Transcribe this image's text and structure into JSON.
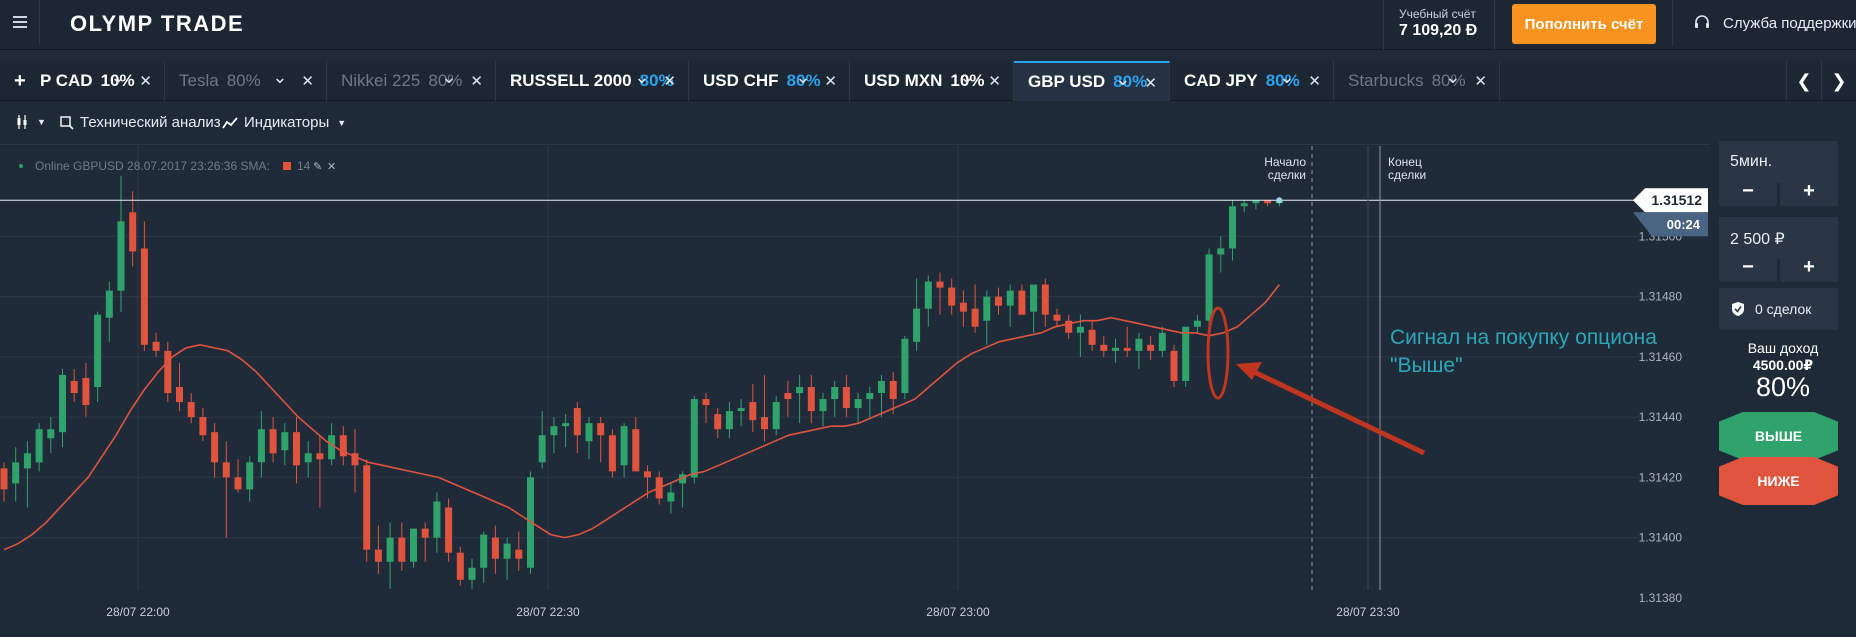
{
  "header": {
    "logo_text": "OLYMP TRADE",
    "account_label": "Учебный счёт",
    "account_balance": "7 109,20 Ð",
    "deposit_button": "Пополнить счёт",
    "support_label": "Служба поддержки"
  },
  "tabs": [
    {
      "name": "P CAD",
      "percent": "10%",
      "percent_color": "#ffffff",
      "dim": false,
      "active": false
    },
    {
      "name": "Tesla",
      "percent": "80%",
      "percent_color": "#6e7988",
      "dim": true,
      "active": false
    },
    {
      "name": "Nikkei 225",
      "percent": "80%",
      "percent_color": "#6e7988",
      "dim": true,
      "active": false
    },
    {
      "name": "RUSSELL 2000",
      "percent": "80%",
      "percent_color": "#2aa3f0",
      "dim": false,
      "active": false
    },
    {
      "name": "USD CHF",
      "percent": "80%",
      "percent_color": "#2aa3f0",
      "dim": false,
      "active": false
    },
    {
      "name": "USD MXN",
      "percent": "10%",
      "percent_color": "#ffffff",
      "dim": false,
      "active": false
    },
    {
      "name": "GBP USD",
      "percent": "80%",
      "percent_color": "#2aa3f0",
      "dim": false,
      "active": true
    },
    {
      "name": "CAD JPY",
      "percent": "80%",
      "percent_color": "#2aa3f0",
      "dim": false,
      "active": false
    },
    {
      "name": "Starbucks",
      "percent": "80%",
      "percent_color": "#6e7988",
      "dim": true,
      "active": false
    }
  ],
  "toolbar": {
    "tech_analysis": "Технический анализ",
    "indicators": "Индикаторы"
  },
  "chart_data": {
    "type": "candlestick",
    "legend": "Online GBPUSD 28.07.2017 23:26:36 SMA:",
    "sma_period": "14",
    "current_price": "1.31512",
    "timer": "00:24",
    "y_ticks": [
      "1.31500",
      "1.31480",
      "1.31460",
      "1.31440",
      "1.31420",
      "1.31400",
      "1.31380"
    ],
    "x_ticks": [
      "28/07 22:00",
      "28/07 22:30",
      "28/07 23:00",
      "28/07 23:30"
    ],
    "deal_start_label": [
      "Начало",
      "сделки"
    ],
    "deal_end_label": [
      "Конец",
      "сделки"
    ],
    "annotation": [
      "Сигнал на покупку опциона",
      "\"Выше\""
    ],
    "colors": {
      "up": "#2fa36b",
      "down": "#e0533d",
      "sma": "#e0533d",
      "annotation": "#2aa7b8",
      "arrow": "#c0351f"
    },
    "candles": [
      {
        "o": 1.31423,
        "h": 1.31425,
        "l": 1.31412,
        "c": 1.31416
      },
      {
        "o": 1.31418,
        "h": 1.3143,
        "l": 1.31412,
        "c": 1.31425
      },
      {
        "o": 1.31423,
        "h": 1.31432,
        "l": 1.3141,
        "c": 1.31428
      },
      {
        "o": 1.31425,
        "h": 1.31438,
        "l": 1.31422,
        "c": 1.31436
      },
      {
        "o": 1.31433,
        "h": 1.3144,
        "l": 1.31428,
        "c": 1.31436
      },
      {
        "o": 1.31435,
        "h": 1.31456,
        "l": 1.3143,
        "c": 1.31454
      },
      {
        "o": 1.31452,
        "h": 1.31456,
        "l": 1.31445,
        "c": 1.31448
      },
      {
        "o": 1.31453,
        "h": 1.31458,
        "l": 1.3144,
        "c": 1.31444
      },
      {
        "o": 1.3145,
        "h": 1.31475,
        "l": 1.31445,
        "c": 1.31474
      },
      {
        "o": 1.31473,
        "h": 1.31485,
        "l": 1.31465,
        "c": 1.31482
      },
      {
        "o": 1.31482,
        "h": 1.3152,
        "l": 1.31475,
        "c": 1.31505
      },
      {
        "o": 1.31508,
        "h": 1.31515,
        "l": 1.3149,
        "c": 1.31495
      },
      {
        "o": 1.31496,
        "h": 1.31505,
        "l": 1.31462,
        "c": 1.31464
      },
      {
        "o": 1.31465,
        "h": 1.31468,
        "l": 1.3146,
        "c": 1.31462
      },
      {
        "o": 1.31462,
        "h": 1.31465,
        "l": 1.31445,
        "c": 1.31448
      },
      {
        "o": 1.3145,
        "h": 1.31458,
        "l": 1.31442,
        "c": 1.31445
      },
      {
        "o": 1.31445,
        "h": 1.31448,
        "l": 1.31438,
        "c": 1.3144
      },
      {
        "o": 1.3144,
        "h": 1.31443,
        "l": 1.31432,
        "c": 1.31434
      },
      {
        "o": 1.31435,
        "h": 1.31438,
        "l": 1.3142,
        "c": 1.31425
      },
      {
        "o": 1.31425,
        "h": 1.31432,
        "l": 1.314,
        "c": 1.3142
      },
      {
        "o": 1.3142,
        "h": 1.31426,
        "l": 1.31415,
        "c": 1.31416
      },
      {
        "o": 1.31416,
        "h": 1.31427,
        "l": 1.31412,
        "c": 1.31425
      },
      {
        "o": 1.31425,
        "h": 1.31442,
        "l": 1.3142,
        "c": 1.31436
      },
      {
        "o": 1.31436,
        "h": 1.3144,
        "l": 1.31425,
        "c": 1.31428
      },
      {
        "o": 1.31429,
        "h": 1.31438,
        "l": 1.31424,
        "c": 1.31435
      },
      {
        "o": 1.31435,
        "h": 1.3144,
        "l": 1.31418,
        "c": 1.31424
      },
      {
        "o": 1.31425,
        "h": 1.31432,
        "l": 1.3142,
        "c": 1.31428
      },
      {
        "o": 1.31428,
        "h": 1.31434,
        "l": 1.3141,
        "c": 1.31426
      },
      {
        "o": 1.31426,
        "h": 1.31438,
        "l": 1.31424,
        "c": 1.31434
      },
      {
        "o": 1.31434,
        "h": 1.31437,
        "l": 1.31424,
        "c": 1.31427
      },
      {
        "o": 1.31428,
        "h": 1.31436,
        "l": 1.31415,
        "c": 1.31424
      },
      {
        "o": 1.31424,
        "h": 1.31426,
        "l": 1.31392,
        "c": 1.31396
      },
      {
        "o": 1.31396,
        "h": 1.31404,
        "l": 1.31388,
        "c": 1.31392
      },
      {
        "o": 1.31392,
        "h": 1.31405,
        "l": 1.31383,
        "c": 1.314
      },
      {
        "o": 1.314,
        "h": 1.31405,
        "l": 1.31389,
        "c": 1.31392
      },
      {
        "o": 1.31392,
        "h": 1.31402,
        "l": 1.3139,
        "c": 1.31403
      },
      {
        "o": 1.31403,
        "h": 1.31405,
        "l": 1.31392,
        "c": 1.314
      },
      {
        "o": 1.314,
        "h": 1.31415,
        "l": 1.31395,
        "c": 1.31412
      },
      {
        "o": 1.3141,
        "h": 1.31413,
        "l": 1.31392,
        "c": 1.31395
      },
      {
        "o": 1.31395,
        "h": 1.31397,
        "l": 1.31384,
        "c": 1.31386
      },
      {
        "o": 1.31386,
        "h": 1.31393,
        "l": 1.31383,
        "c": 1.3139
      },
      {
        "o": 1.3139,
        "h": 1.31402,
        "l": 1.31385,
        "c": 1.31401
      },
      {
        "o": 1.314,
        "h": 1.31404,
        "l": 1.31388,
        "c": 1.31393
      },
      {
        "o": 1.31393,
        "h": 1.314,
        "l": 1.31386,
        "c": 1.31398
      },
      {
        "o": 1.31396,
        "h": 1.31402,
        "l": 1.31389,
        "c": 1.31393
      },
      {
        "o": 1.3139,
        "h": 1.31422,
        "l": 1.31388,
        "c": 1.3142
      },
      {
        "o": 1.31425,
        "h": 1.31442,
        "l": 1.31423,
        "c": 1.31434
      },
      {
        "o": 1.31434,
        "h": 1.3144,
        "l": 1.31428,
        "c": 1.31437
      },
      {
        "o": 1.31437,
        "h": 1.31441,
        "l": 1.3143,
        "c": 1.31438
      },
      {
        "o": 1.31443,
        "h": 1.31445,
        "l": 1.31428,
        "c": 1.31434
      },
      {
        "o": 1.31432,
        "h": 1.3144,
        "l": 1.31426,
        "c": 1.31438
      },
      {
        "o": 1.31438,
        "h": 1.3144,
        "l": 1.31425,
        "c": 1.31434
      },
      {
        "o": 1.31434,
        "h": 1.31436,
        "l": 1.3142,
        "c": 1.31422
      },
      {
        "o": 1.31424,
        "h": 1.31438,
        "l": 1.3142,
        "c": 1.31437
      },
      {
        "o": 1.31436,
        "h": 1.3144,
        "l": 1.31422,
        "c": 1.31422
      },
      {
        "o": 1.31422,
        "h": 1.31424,
        "l": 1.31413,
        "c": 1.3142
      },
      {
        "o": 1.3142,
        "h": 1.31422,
        "l": 1.31411,
        "c": 1.31413
      },
      {
        "o": 1.31412,
        "h": 1.31418,
        "l": 1.31408,
        "c": 1.31415
      },
      {
        "o": 1.31418,
        "h": 1.31422,
        "l": 1.3141,
        "c": 1.31421
      },
      {
        "o": 1.3142,
        "h": 1.31447,
        "l": 1.31418,
        "c": 1.31446
      },
      {
        "o": 1.31446,
        "h": 1.31448,
        "l": 1.31438,
        "c": 1.31444
      },
      {
        "o": 1.31441,
        "h": 1.31443,
        "l": 1.31433,
        "c": 1.31436
      },
      {
        "o": 1.31436,
        "h": 1.31445,
        "l": 1.31433,
        "c": 1.31442
      },
      {
        "o": 1.31442,
        "h": 1.31446,
        "l": 1.31437,
        "c": 1.31443
      },
      {
        "o": 1.31445,
        "h": 1.31451,
        "l": 1.31435,
        "c": 1.31439
      },
      {
        "o": 1.3144,
        "h": 1.31454,
        "l": 1.31432,
        "c": 1.31436
      },
      {
        "o": 1.31436,
        "h": 1.31447,
        "l": 1.31434,
        "c": 1.31445
      },
      {
        "o": 1.31448,
        "h": 1.31452,
        "l": 1.3144,
        "c": 1.31446
      },
      {
        "o": 1.31448,
        "h": 1.31454,
        "l": 1.31438,
        "c": 1.3145
      },
      {
        "o": 1.3145,
        "h": 1.31454,
        "l": 1.31438,
        "c": 1.31442
      },
      {
        "o": 1.31442,
        "h": 1.31448,
        "l": 1.31437,
        "c": 1.31446
      },
      {
        "o": 1.31446,
        "h": 1.31452,
        "l": 1.3144,
        "c": 1.3145
      },
      {
        "o": 1.3145,
        "h": 1.31454,
        "l": 1.3144,
        "c": 1.31443
      },
      {
        "o": 1.31443,
        "h": 1.31448,
        "l": 1.31438,
        "c": 1.31446
      },
      {
        "o": 1.31446,
        "h": 1.3145,
        "l": 1.3144,
        "c": 1.31448
      },
      {
        "o": 1.31448,
        "h": 1.31454,
        "l": 1.3144,
        "c": 1.31452
      },
      {
        "o": 1.31452,
        "h": 1.31455,
        "l": 1.31441,
        "c": 1.31446
      },
      {
        "o": 1.31448,
        "h": 1.31467,
        "l": 1.31446,
        "c": 1.31466
      },
      {
        "o": 1.31465,
        "h": 1.31486,
        "l": 1.31462,
        "c": 1.31476
      },
      {
        "o": 1.31476,
        "h": 1.31487,
        "l": 1.3147,
        "c": 1.31485
      },
      {
        "o": 1.31485,
        "h": 1.31488,
        "l": 1.31474,
        "c": 1.31483
      },
      {
        "o": 1.31483,
        "h": 1.31486,
        "l": 1.31474,
        "c": 1.31477
      },
      {
        "o": 1.31478,
        "h": 1.31482,
        "l": 1.3147,
        "c": 1.31475
      },
      {
        "o": 1.31476,
        "h": 1.31484,
        "l": 1.31468,
        "c": 1.3147
      },
      {
        "o": 1.31472,
        "h": 1.31482,
        "l": 1.31464,
        "c": 1.3148
      },
      {
        "o": 1.3148,
        "h": 1.31483,
        "l": 1.31474,
        "c": 1.31477
      },
      {
        "o": 1.31477,
        "h": 1.31484,
        "l": 1.3147,
        "c": 1.31482
      },
      {
        "o": 1.31482,
        "h": 1.31484,
        "l": 1.31474,
        "c": 1.31474
      },
      {
        "o": 1.31475,
        "h": 1.31484,
        "l": 1.31468,
        "c": 1.31484
      },
      {
        "o": 1.31484,
        "h": 1.31486,
        "l": 1.3147,
        "c": 1.31474
      },
      {
        "o": 1.31474,
        "h": 1.31476,
        "l": 1.3147,
        "c": 1.31472
      },
      {
        "o": 1.31472,
        "h": 1.31474,
        "l": 1.31466,
        "c": 1.31468
      },
      {
        "o": 1.31468,
        "h": 1.31474,
        "l": 1.3146,
        "c": 1.3147
      },
      {
        "o": 1.31469,
        "h": 1.31472,
        "l": 1.31462,
        "c": 1.31464
      },
      {
        "o": 1.31464,
        "h": 1.31467,
        "l": 1.3146,
        "c": 1.31462
      },
      {
        "o": 1.31462,
        "h": 1.31466,
        "l": 1.31458,
        "c": 1.31463
      },
      {
        "o": 1.31463,
        "h": 1.3147,
        "l": 1.3146,
        "c": 1.31462
      },
      {
        "o": 1.31462,
        "h": 1.31468,
        "l": 1.31456,
        "c": 1.31466
      },
      {
        "o": 1.31464,
        "h": 1.31467,
        "l": 1.31459,
        "c": 1.31462
      },
      {
        "o": 1.31462,
        "h": 1.3147,
        "l": 1.3146,
        "c": 1.31468
      },
      {
        "o": 1.31462,
        "h": 1.31464,
        "l": 1.3145,
        "c": 1.31452
      },
      {
        "o": 1.31452,
        "h": 1.3147,
        "l": 1.3145,
        "c": 1.3147
      },
      {
        "o": 1.3147,
        "h": 1.31474,
        "l": 1.31468,
        "c": 1.31472
      },
      {
        "o": 1.31472,
        "h": 1.31496,
        "l": 1.3147,
        "c": 1.31494
      },
      {
        "o": 1.31494,
        "h": 1.315,
        "l": 1.31488,
        "c": 1.31496
      },
      {
        "o": 1.31496,
        "h": 1.31512,
        "l": 1.31492,
        "c": 1.3151
      },
      {
        "o": 1.3151,
        "h": 1.31512,
        "l": 1.31508,
        "c": 1.31511
      },
      {
        "o": 1.31511,
        "h": 1.31512,
        "l": 1.31509,
        "c": 1.31512
      },
      {
        "o": 1.31512,
        "h": 1.31512,
        "l": 1.3151,
        "c": 1.31511
      },
      {
        "o": 1.31511,
        "h": 1.31512,
        "l": 1.3151,
        "c": 1.31512
      }
    ],
    "sma": [
      1.31396,
      1.31398,
      1.31401,
      1.31405,
      1.3141,
      1.31415,
      1.3142,
      1.31427,
      1.31434,
      1.31442,
      1.31449,
      1.31455,
      1.3146,
      1.31463,
      1.31464,
      1.31463,
      1.31462,
      1.31459,
      1.31455,
      1.3145,
      1.31445,
      1.3144,
      1.31436,
      1.31432,
      1.31429,
      1.31427,
      1.31425,
      1.31424,
      1.31423,
      1.31422,
      1.31421,
      1.3142,
      1.31418,
      1.31416,
      1.31414,
      1.31412,
      1.3141,
      1.31407,
      1.31404,
      1.31401,
      1.314,
      1.31401,
      1.31403,
      1.31406,
      1.31409,
      1.31412,
      1.31415,
      1.31417,
      1.31419,
      1.31421,
      1.31422,
      1.31424,
      1.31426,
      1.31428,
      1.3143,
      1.31432,
      1.31434,
      1.31435,
      1.31436,
      1.31437,
      1.31437,
      1.31438,
      1.3144,
      1.31442,
      1.31444,
      1.31446,
      1.3145,
      1.31454,
      1.31458,
      1.31461,
      1.31463,
      1.31465,
      1.31466,
      1.31467,
      1.31468,
      1.3147,
      1.31471,
      1.31472,
      1.31472,
      1.31473,
      1.31472,
      1.31471,
      1.3147,
      1.31469,
      1.31468,
      1.31468,
      1.31467,
      1.31468,
      1.3147,
      1.31474,
      1.31478,
      1.31484
    ]
  },
  "sidebar": {
    "duration": "5мин.",
    "amount": "2 500 ₽",
    "minus": "−",
    "plus": "+",
    "deals": "0 сделок",
    "income_label": "Ваш доход",
    "income_value": "4500.00₽",
    "income_percent": "80%",
    "up_button": "ВЫШЕ",
    "down_button": "НИЖЕ"
  }
}
